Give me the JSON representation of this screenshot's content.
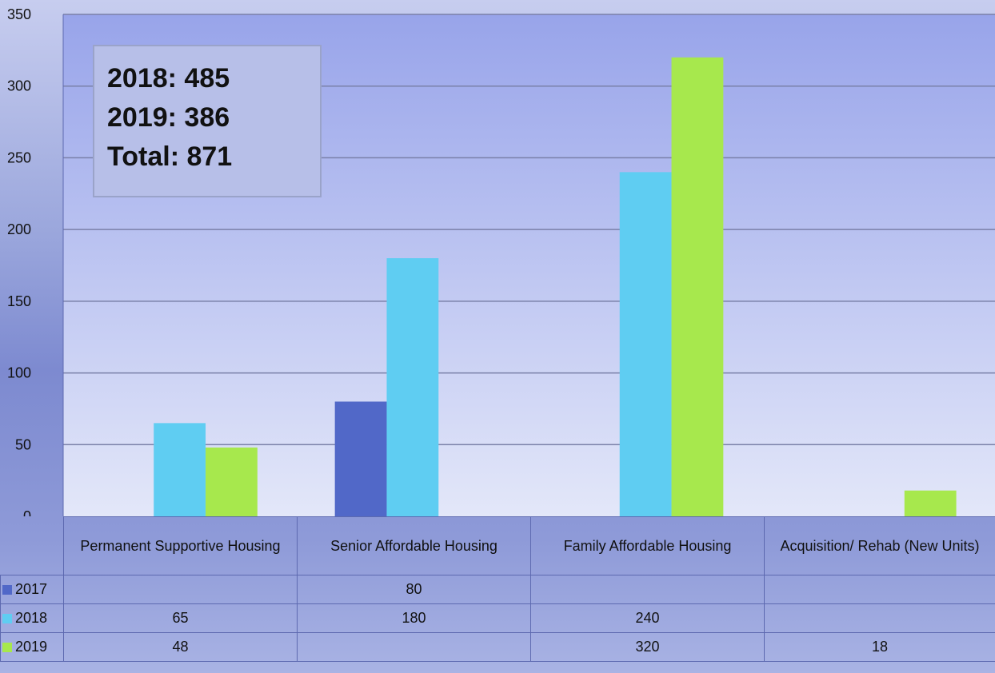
{
  "chart_data": {
    "type": "bar",
    "categories": [
      "Permanent Supportive Housing",
      "Senior Affordable Housing",
      "Family Affordable Housing",
      "Acquisition/ Rehab (New Units)"
    ],
    "series": [
      {
        "name": "2017",
        "values": [
          null,
          80,
          null,
          null
        ],
        "color": "#5168c8"
      },
      {
        "name": "2018",
        "values": [
          65,
          180,
          240,
          null
        ],
        "color": "#5fcdf2"
      },
      {
        "name": "2019",
        "values": [
          48,
          null,
          320,
          18
        ],
        "color": "#a7e84d"
      }
    ],
    "ylim": [
      0,
      350
    ],
    "yticks": [
      0,
      50,
      100,
      150,
      200,
      250,
      300,
      350
    ],
    "grid": true,
    "legend": "data-table",
    "annotation": [
      "2018: 485",
      "2019: 386",
      "Total: 871"
    ]
  }
}
